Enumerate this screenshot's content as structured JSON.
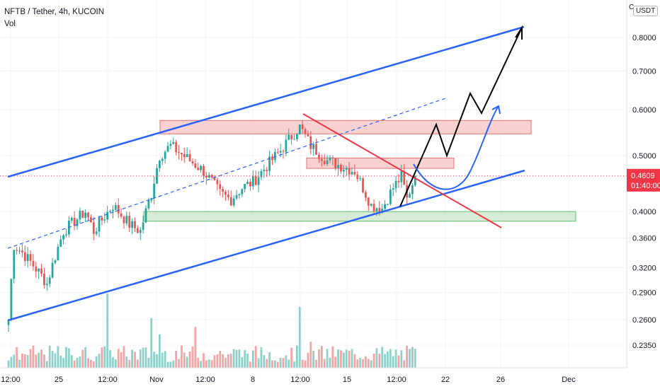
{
  "header": {
    "symbol_line": "NFTB / Tether, 4h, KUCOIN",
    "volume_label": "Vol"
  },
  "price_scale": {
    "currency": "USDT",
    "corner_glyph": "C"
  },
  "last_price": {
    "value": "0.4609",
    "countdown": "01:40:00",
    "color": "#f23645"
  },
  "colors": {
    "up": "#26a69a",
    "down": "#ef5350",
    "vol_up": "#8fd1c9",
    "vol_down": "#f5a3a3",
    "channel": "#2962ff",
    "trendline": "#f23645",
    "projection": "#000000",
    "resistance_fill": "#f7c1c1",
    "support_fill": "#c8e6c9"
  },
  "chart_data": {
    "type": "candlestick",
    "title": "NFTB / Tether, 4h, KUCOIN",
    "y_scale": "log",
    "y_ticks": [
      0.8,
      0.7,
      0.6,
      0.5,
      0.46,
      0.4,
      0.36,
      0.32,
      0.29,
      0.26,
      0.235
    ],
    "y_tick_labels": [
      "0.8000",
      "0.7000",
      "0.6000",
      "0.5000",
      "0.4609",
      "0.4000",
      "0.3600",
      "0.3200",
      "0.2900",
      "0.2600",
      "0.2350"
    ],
    "x_tick_labels": [
      "12:00",
      "25",
      "12:00",
      "Nov",
      "12:00",
      "8",
      "12:00",
      "15",
      "12:00",
      "22",
      "26",
      "Dec"
    ],
    "price_anchors": [
      [
        0,
        0.26
      ],
      [
        2,
        0.35
      ],
      [
        5,
        0.34
      ],
      [
        12,
        0.31
      ],
      [
        14,
        0.3
      ],
      [
        20,
        0.37
      ],
      [
        28,
        0.4
      ],
      [
        31,
        0.37
      ],
      [
        38,
        0.41
      ],
      [
        44,
        0.38
      ],
      [
        48,
        0.37
      ],
      [
        52,
        0.43
      ],
      [
        55,
        0.5
      ],
      [
        59,
        0.52
      ],
      [
        66,
        0.49
      ],
      [
        71,
        0.47
      ],
      [
        77,
        0.43
      ],
      [
        81,
        0.42
      ],
      [
        85,
        0.44
      ],
      [
        89,
        0.45
      ],
      [
        94,
        0.48
      ],
      [
        99,
        0.51
      ],
      [
        103,
        0.54
      ],
      [
        106,
        0.56
      ],
      [
        110,
        0.52
      ],
      [
        116,
        0.49
      ],
      [
        121,
        0.48
      ],
      [
        126,
        0.47
      ],
      [
        129,
        0.44
      ],
      [
        132,
        0.41
      ],
      [
        136,
        0.405
      ],
      [
        140,
        0.44
      ],
      [
        143,
        0.46
      ],
      [
        145,
        0.42
      ],
      [
        148,
        0.461
      ]
    ],
    "volume_peaks": [
      [
        36,
        1.0
      ],
      [
        52,
        0.67
      ],
      [
        55,
        0.45
      ],
      [
        68,
        0.55
      ],
      [
        106,
        0.82
      ],
      [
        110,
        0.35
      ]
    ],
    "zones": [
      {
        "name": "upper resistance",
        "from": 0.545,
        "to": 0.575
      },
      {
        "name": "mid resistance",
        "from": 0.475,
        "to": 0.495
      },
      {
        "name": "support",
        "from": 0.385,
        "to": 0.4
      }
    ]
  }
}
